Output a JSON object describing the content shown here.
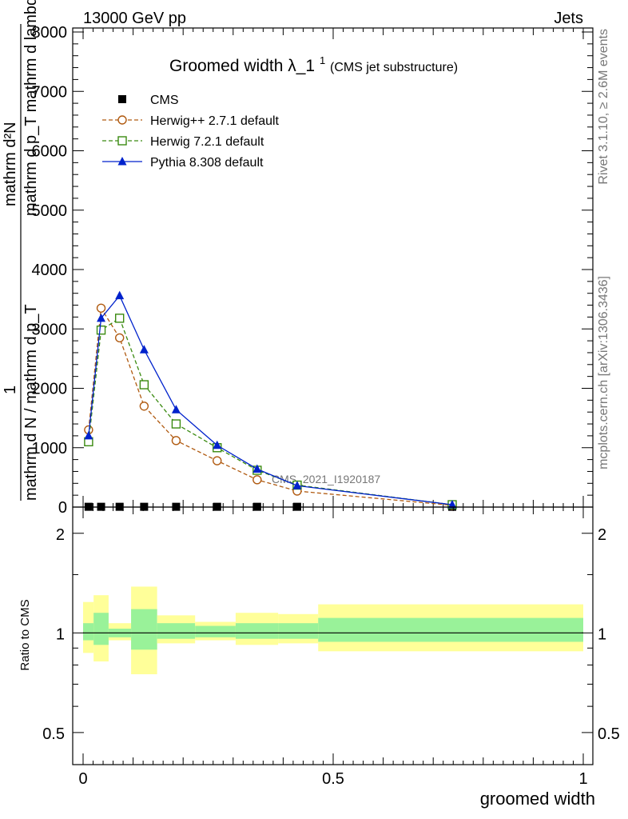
{
  "header": {
    "left": "13000 GeV pp",
    "right": "Jets"
  },
  "side_labels": {
    "rivet": "Rivet 3.1.10, ≥ 2.6M events",
    "mcplots": "mcplots.cern.ch [arXiv:1306.3436]"
  },
  "watermark": "CMS_2021_I1920187",
  "chart_data": [
    {
      "type": "line",
      "title": "Groomed width λ_1",
      "title_main": "Groomed width",
      "title_lambda": "λ_1",
      "title_sup": "1",
      "subtitle": "(CMS jet substructure)",
      "ylabel_top": "mathrm d²N",
      "ylabel_top_sub": "mathrm d p_T mathrm d lambda",
      "ylabel_one": "1",
      "ylabel_bottom": "mathrm d N / mathrm d p_T",
      "xlim": [
        0,
        1
      ],
      "ylim": [
        0,
        8000
      ],
      "yticks": [
        "0",
        "1000",
        "2000",
        "3000",
        "4000",
        "5000",
        "6000",
        "7000",
        "8000"
      ],
      "legend_placement": "top-left",
      "series": [
        {
          "name": "CMS",
          "color": "#000000",
          "marker": "square",
          "style": "points",
          "x": [
            0.011,
            0.036,
            0.073,
            0.122,
            0.186,
            0.268,
            0.348,
            0.428,
            0.738
          ],
          "y": [
            5,
            5,
            5,
            5,
            5,
            5,
            5,
            5,
            5
          ]
        },
        {
          "name": "Herwig++ 2.7.1 default",
          "color": "#b05a10",
          "marker": "open-circle",
          "style": "dashed",
          "x": [
            0.011,
            0.036,
            0.073,
            0.122,
            0.186,
            0.268,
            0.348,
            0.428,
            0.738
          ],
          "y": [
            1300,
            3350,
            2850,
            1700,
            1120,
            780,
            460,
            270,
            30
          ]
        },
        {
          "name": "Herwig 7.2.1 default",
          "color": "#3a8a10",
          "marker": "open-square",
          "style": "dashed",
          "x": [
            0.011,
            0.036,
            0.073,
            0.122,
            0.186,
            0.268,
            0.348,
            0.428,
            0.738
          ],
          "y": [
            1100,
            2980,
            3180,
            2060,
            1400,
            1000,
            620,
            370,
            40
          ]
        },
        {
          "name": "Pythia 8.308 default",
          "color": "#0022cc",
          "marker": "filled-triangle",
          "style": "solid",
          "x": [
            0.011,
            0.036,
            0.073,
            0.122,
            0.186,
            0.268,
            0.348,
            0.428,
            0.738
          ],
          "y": [
            1200,
            3180,
            3560,
            2650,
            1640,
            1040,
            640,
            360,
            40
          ]
        }
      ]
    },
    {
      "type": "area",
      "ylabel": "Ratio to CMS",
      "xlabel": "groomed width",
      "xlim": [
        0,
        1
      ],
      "ylim": [
        0.4,
        2.4
      ],
      "yscale": "log",
      "yticks": [
        "0.5",
        "1",
        "2"
      ],
      "xticks": [
        "0",
        "0.5",
        "1"
      ],
      "bands": [
        {
          "x0": 0.0,
          "x1": 0.021,
          "inner": [
            0.95,
            1.07
          ],
          "outer": [
            0.87,
            1.24
          ]
        },
        {
          "x0": 0.021,
          "x1": 0.051,
          "inner": [
            0.92,
            1.15
          ],
          "outer": [
            0.82,
            1.3
          ]
        },
        {
          "x0": 0.051,
          "x1": 0.096,
          "inner": [
            0.97,
            1.03
          ],
          "outer": [
            0.95,
            1.07
          ]
        },
        {
          "x0": 0.096,
          "x1": 0.148,
          "inner": [
            0.89,
            1.18
          ],
          "outer": [
            0.75,
            1.38
          ]
        },
        {
          "x0": 0.148,
          "x1": 0.224,
          "inner": [
            0.96,
            1.07
          ],
          "outer": [
            0.93,
            1.13
          ]
        },
        {
          "x0": 0.224,
          "x1": 0.305,
          "inner": [
            0.97,
            1.05
          ],
          "outer": [
            0.95,
            1.08
          ]
        },
        {
          "x0": 0.305,
          "x1": 0.39,
          "inner": [
            0.96,
            1.07
          ],
          "outer": [
            0.92,
            1.15
          ]
        },
        {
          "x0": 0.39,
          "x1": 0.47,
          "inner": [
            0.96,
            1.07
          ],
          "outer": [
            0.93,
            1.14
          ]
        },
        {
          "x0": 0.47,
          "x1": 1.0,
          "inner": [
            0.94,
            1.11
          ],
          "outer": [
            0.88,
            1.22
          ]
        }
      ]
    }
  ]
}
